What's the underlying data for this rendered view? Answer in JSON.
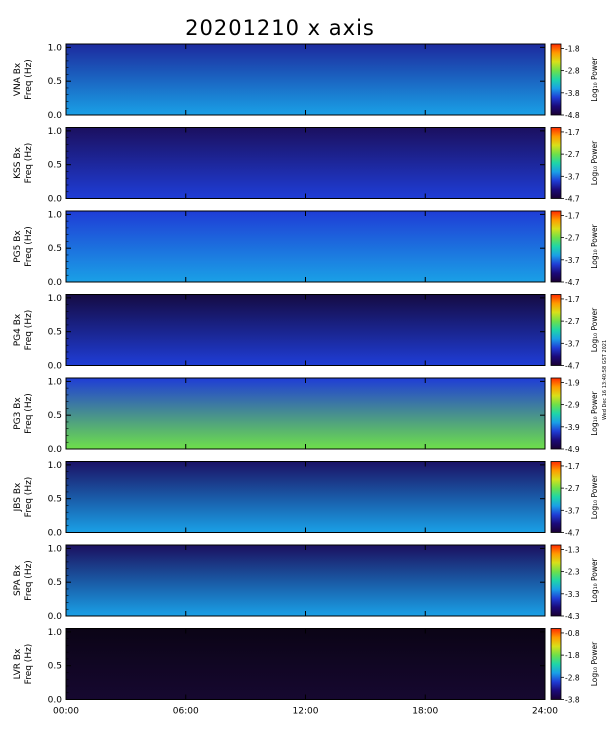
{
  "title": "20201210  x  axis",
  "side_note": "Wed Dec 16 13:40:58 GST 2021",
  "colors": {
    "colormap": [
      "#ffffff",
      "#1a0033",
      "#1b0a7a",
      "#1f3dd6",
      "#1aa0e6",
      "#1fd6a8",
      "#6ee04a",
      "#d8e01a",
      "#ff9b00",
      "#ff2a00"
    ]
  },
  "chart_data": [
    {
      "type": "heatmap",
      "station_label": "VNA Bx",
      "ylabel": "Freq (Hz)",
      "colorbar_label": "Log₁₀ Power",
      "yticks": [
        "0.0",
        "0.5",
        "1.0"
      ],
      "ylim": [
        0,
        1.05
      ],
      "colorbar_ticks": [
        "-1.8",
        "-2.8",
        "-3.8",
        "-4.8"
      ],
      "clim": [
        -4.8,
        -1.6
      ]
    },
    {
      "type": "heatmap",
      "station_label": "KSS Bx",
      "ylabel": "Freq (Hz)",
      "colorbar_label": "Log₁₀ Power",
      "yticks": [
        "0.0",
        "0.5",
        "1.0"
      ],
      "ylim": [
        0,
        1.05
      ],
      "colorbar_ticks": [
        "-1.7",
        "-2.7",
        "-3.7",
        "-4.7"
      ],
      "clim": [
        -4.7,
        -1.5
      ]
    },
    {
      "type": "heatmap",
      "station_label": "PG5 Bx",
      "ylabel": "Freq (Hz)",
      "colorbar_label": "Log₁₀ Power",
      "yticks": [
        "0.0",
        "0.5",
        "1.0"
      ],
      "ylim": [
        0,
        1.05
      ],
      "colorbar_ticks": [
        "-1.7",
        "-2.7",
        "-3.7",
        "-4.7"
      ],
      "clim": [
        -4.7,
        -1.5
      ]
    },
    {
      "type": "heatmap",
      "station_label": "PG4 Bx",
      "ylabel": "Freq (Hz)",
      "colorbar_label": "Log₁₀ Power",
      "yticks": [
        "0.0",
        "0.5",
        "1.0"
      ],
      "ylim": [
        0,
        1.05
      ],
      "colorbar_ticks": [
        "-1.7",
        "-2.7",
        "-3.7",
        "-4.7"
      ],
      "clim": [
        -4.7,
        -1.5
      ]
    },
    {
      "type": "heatmap",
      "station_label": "PG3 Bx",
      "ylabel": "Freq (Hz)",
      "colorbar_label": "Log₁₀ Power",
      "yticks": [
        "0.0",
        "0.5",
        "1.0"
      ],
      "ylim": [
        0,
        1.05
      ],
      "colorbar_ticks": [
        "-1.9",
        "-2.9",
        "-3.9",
        "-4.9"
      ],
      "clim": [
        -4.9,
        -1.7
      ]
    },
    {
      "type": "heatmap",
      "station_label": "JBS Bx",
      "ylabel": "Freq (Hz)",
      "colorbar_label": "Log₁₀ Power",
      "yticks": [
        "0.0",
        "0.5",
        "1.0"
      ],
      "ylim": [
        0,
        1.05
      ],
      "colorbar_ticks": [
        "-1.7",
        "-2.7",
        "-3.7",
        "-4.7"
      ],
      "clim": [
        -4.7,
        -1.5
      ]
    },
    {
      "type": "heatmap",
      "station_label": "SPA Bx",
      "ylabel": "Freq (Hz)",
      "colorbar_label": "Log₁₀ Power",
      "yticks": [
        "0.0",
        "0.5",
        "1.0"
      ],
      "ylim": [
        0,
        1.05
      ],
      "colorbar_ticks": [
        "-1.3",
        "-2.3",
        "-3.3",
        "-4.3"
      ],
      "clim": [
        -4.3,
        -1.1
      ]
    },
    {
      "type": "heatmap",
      "station_label": "LVR Bx",
      "ylabel": "Freq (Hz)",
      "colorbar_label": "Log₁₀ Power",
      "yticks": [
        "0.0",
        "0.5",
        "1.0"
      ],
      "ylim": [
        0,
        1.05
      ],
      "colorbar_ticks": [
        "-0.8",
        "-1.8",
        "-2.8",
        "-3.8"
      ],
      "clim": [
        -3.8,
        -0.6
      ]
    }
  ],
  "x_axis": {
    "ticks": [
      "00:00",
      "06:00",
      "12:00",
      "18:00",
      "24:00"
    ],
    "xlim": [
      0,
      24
    ]
  }
}
